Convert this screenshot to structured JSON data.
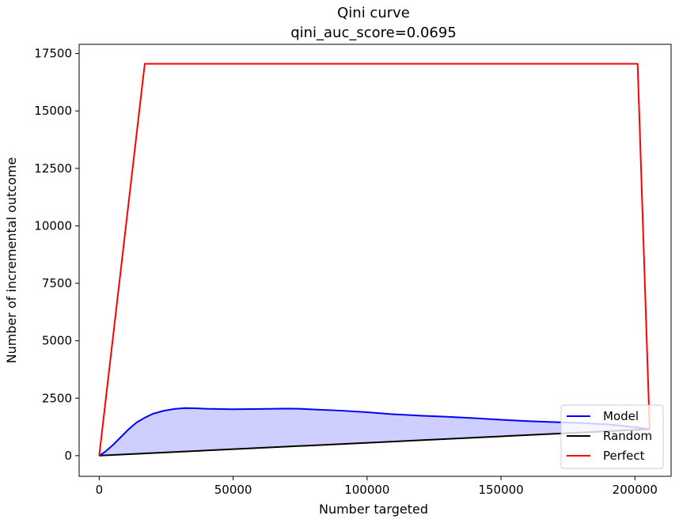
{
  "chart_data": {
    "type": "line",
    "title": "Qini curve",
    "subtitle": "qini_auc_score=0.0695",
    "xlabel": "Number targeted",
    "ylabel": "Number of incremental outcome",
    "xlim": [
      -7500,
      213500
    ],
    "ylim": [
      -900,
      17900
    ],
    "x_ticks": [
      0,
      50000,
      100000,
      150000,
      200000
    ],
    "x_tick_labels": [
      "0",
      "50000",
      "100000",
      "150000",
      "200000"
    ],
    "y_ticks": [
      0,
      2500,
      5000,
      7500,
      10000,
      12500,
      15000,
      17500
    ],
    "y_tick_labels": [
      "0",
      "2500",
      "5000",
      "7500",
      "10000",
      "12500",
      "15000",
      "17500"
    ],
    "grid": false,
    "legend_placement": "lower right",
    "series": [
      {
        "name": "Model",
        "color": "#0000ff",
        "fill": "#ccccff",
        "x": [
          0,
          2000,
          5000,
          8000,
          11000,
          14000,
          17000,
          20000,
          24000,
          28000,
          32000,
          36000,
          40000,
          50000,
          60000,
          70000,
          75000,
          80000,
          90000,
          100000,
          110000,
          120000,
          130000,
          140000,
          150000,
          160000,
          170000,
          180000,
          190000,
          200000,
          205500
        ],
        "y": [
          0,
          150,
          450,
          800,
          1150,
          1450,
          1650,
          1820,
          1950,
          2030,
          2070,
          2060,
          2040,
          2020,
          2030,
          2050,
          2040,
          2010,
          1960,
          1890,
          1800,
          1740,
          1690,
          1630,
          1560,
          1500,
          1460,
          1420,
          1360,
          1240,
          1150
        ]
      },
      {
        "name": "Random",
        "color": "#000000",
        "x": [
          0,
          205500
        ],
        "y": [
          0,
          1150
        ]
      },
      {
        "name": "Perfect",
        "color": "#ff0000",
        "x": [
          0,
          17000,
          201000,
          205500
        ],
        "y": [
          0,
          17050,
          17050,
          1150
        ]
      }
    ]
  }
}
